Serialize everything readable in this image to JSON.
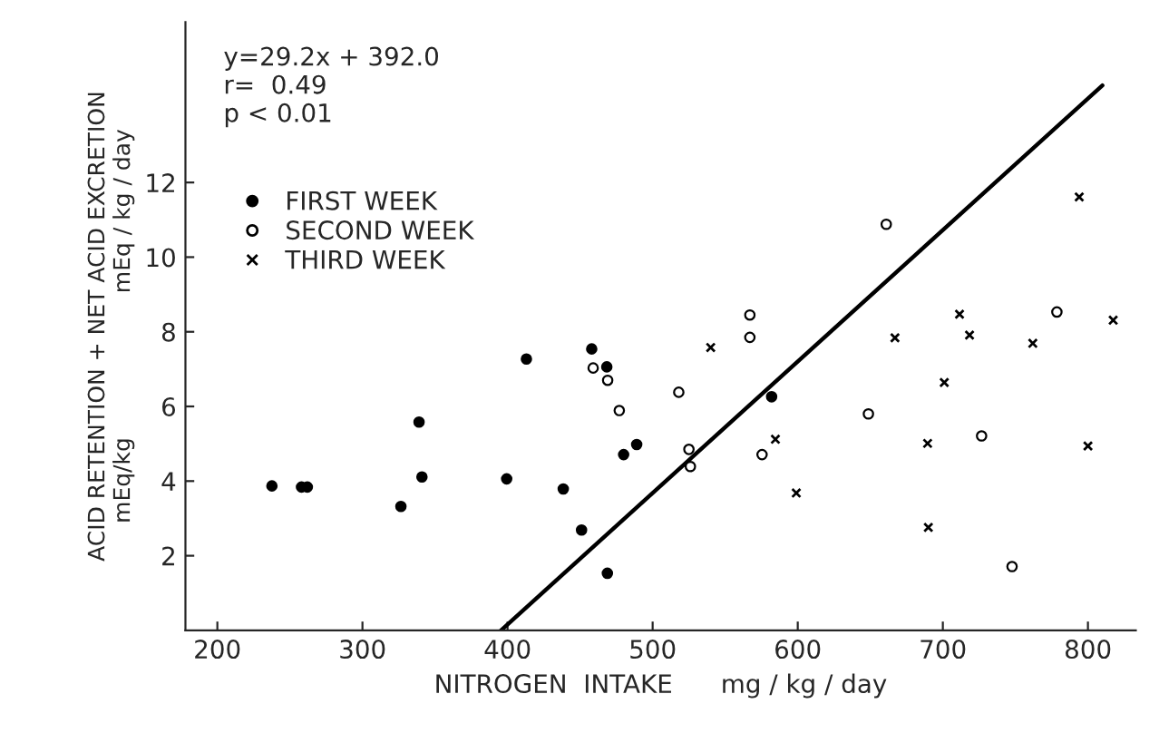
{
  "chart_data": {
    "type": "scatter",
    "xlabel": "NITROGEN  INTAKE      mg / kg / day",
    "ylabel": "ACID RETENTION + NET ACID EXCRETION\nmEq/kg                    mEq / kg / day",
    "annotations": [
      "y=29.2x + 392.0",
      "r=  0.49",
      "p < 0.01"
    ],
    "xlim": [
      178,
      833
    ],
    "ylim": [
      0,
      16.3
    ],
    "xticks": [
      200,
      300,
      400,
      500,
      600,
      700,
      800
    ],
    "yticks": [
      2,
      4,
      6,
      8,
      10,
      12
    ],
    "grid": false,
    "legend": "top left",
    "series": [
      {
        "name": "FIRST WEEK",
        "color": "#000000",
        "marker": "circle",
        "x": [
          237.6,
          258,
          262,
          326.5,
          339,
          341,
          399.4,
          413,
          438.4,
          451,
          458,
          468.4,
          468.8,
          480,
          489,
          582
        ],
        "values": [
          3.87,
          3.84,
          3.84,
          3.32,
          5.58,
          4.11,
          4.06,
          7.27,
          3.79,
          2.69,
          7.54,
          7.06,
          1.53,
          4.71,
          4.98,
          6.26
        ]
      },
      {
        "name": "SECOND WEEK",
        "color": "#ffffff",
        "marker": "circle",
        "x": [
          459,
          469,
          477,
          518,
          525,
          526,
          567,
          567,
          575.4,
          648.7,
          661,
          726.7,
          747.7,
          778.6
        ],
        "values": [
          7.03,
          6.7,
          5.89,
          6.38,
          4.85,
          4.39,
          8.45,
          7.85,
          4.71,
          5.8,
          10.88,
          5.21,
          1.71,
          8.53
        ]
      },
      {
        "name": "THIRD WEEK",
        "color": "#000000",
        "marker": "cross",
        "x": [
          540,
          584.6,
          599,
          667,
          689.5,
          690,
          701,
          711.5,
          718.4,
          762,
          794,
          800,
          817.4
        ],
        "values": [
          7.58,
          5.12,
          3.68,
          7.84,
          5.01,
          2.76,
          6.64,
          8.47,
          7.91,
          7.69,
          11.61,
          4.94,
          8.31
        ]
      },
      {
        "type": "line",
        "color": "#000000",
        "x": [
          395.5,
          810
        ],
        "values": [
          0,
          14.6
        ]
      }
    ]
  }
}
